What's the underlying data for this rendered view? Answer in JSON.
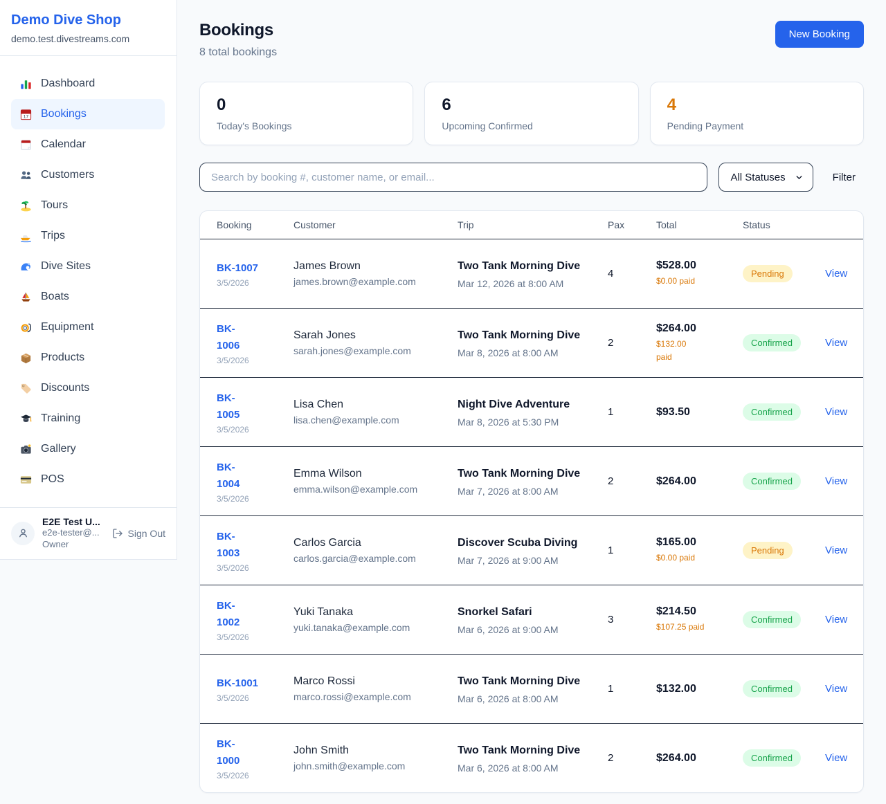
{
  "brand": {
    "name": "Demo Dive Shop",
    "domain": "demo.test.divestreams.com"
  },
  "nav": [
    {
      "icon": "dashboard",
      "label": "Dashboard",
      "active": false
    },
    {
      "icon": "bookings",
      "label": "Bookings",
      "active": true
    },
    {
      "icon": "calendar",
      "label": "Calendar",
      "active": false
    },
    {
      "icon": "customers",
      "label": "Customers",
      "active": false
    },
    {
      "icon": "tours",
      "label": "Tours",
      "active": false
    },
    {
      "icon": "trips",
      "label": "Trips",
      "active": false
    },
    {
      "icon": "dive-sites",
      "label": "Dive Sites",
      "active": false
    },
    {
      "icon": "boats",
      "label": "Boats",
      "active": false
    },
    {
      "icon": "equipment",
      "label": "Equipment",
      "active": false
    },
    {
      "icon": "products",
      "label": "Products",
      "active": false
    },
    {
      "icon": "discounts",
      "label": "Discounts",
      "active": false
    },
    {
      "icon": "training",
      "label": "Training",
      "active": false
    },
    {
      "icon": "gallery",
      "label": "Gallery",
      "active": false
    },
    {
      "icon": "pos",
      "label": "POS",
      "active": false
    }
  ],
  "user": {
    "name": "E2E Test U...",
    "email": "e2e-tester@...",
    "role": "Owner",
    "sign_out": "Sign Out"
  },
  "header": {
    "title": "Bookings",
    "subtitle": "8 total bookings",
    "new_booking": "New Booking"
  },
  "stats": [
    {
      "value": "0",
      "label": "Today's Bookings"
    },
    {
      "value": "6",
      "label": "Upcoming Confirmed"
    },
    {
      "value": "4",
      "label": "Pending Payment"
    }
  ],
  "filters": {
    "search_placeholder": "Search by booking #, customer name, or email...",
    "status_value": "All Statuses",
    "filter_label": "Filter"
  },
  "table": {
    "headers": [
      "Booking",
      "Customer",
      "Trip",
      "Pax",
      "Total",
      "Status"
    ],
    "view_label": "View",
    "rows": [
      {
        "id_display": "BK-1007",
        "date": "3/5/2026",
        "customer": "James Brown",
        "email": "james.brown@example.com",
        "trip": "Two Tank Morning Dive",
        "trip_datetime": "Mar 12, 2026 at 8:00 AM",
        "pax": "4",
        "total": "$528.00",
        "paid_display": "$0.00 paid",
        "status": "Pending"
      },
      {
        "id_display": "BK-\n1006",
        "date": "3/5/2026",
        "customer": "Sarah Jones",
        "email": "sarah.jones@example.com",
        "trip": "Two Tank Morning Dive",
        "trip_datetime": "Mar 8, 2026 at 8:00 AM",
        "pax": "2",
        "total": "$264.00",
        "paid_display": "$132.00\npaid",
        "status": "Confirmed"
      },
      {
        "id_display": "BK-\n1005",
        "date": "3/5/2026",
        "customer": "Lisa Chen",
        "email": "lisa.chen@example.com",
        "trip": "Night Dive Adventure",
        "trip_datetime": "Mar 8, 2026 at 5:30 PM",
        "pax": "1",
        "total": "$93.50",
        "paid_display": null,
        "status": "Confirmed"
      },
      {
        "id_display": "BK-\n1004",
        "date": "3/5/2026",
        "customer": "Emma Wilson",
        "email": "emma.wilson@example.com",
        "trip": "Two Tank Morning Dive",
        "trip_datetime": "Mar 7, 2026 at 8:00 AM",
        "pax": "2",
        "total": "$264.00",
        "paid_display": null,
        "status": "Confirmed"
      },
      {
        "id_display": "BK-\n1003",
        "date": "3/5/2026",
        "customer": "Carlos Garcia",
        "email": "carlos.garcia@example.com",
        "trip": "Discover Scuba Diving",
        "trip_datetime": "Mar 7, 2026 at 9:00 AM",
        "pax": "1",
        "total": "$165.00",
        "paid_display": "$0.00 paid",
        "status": "Pending"
      },
      {
        "id_display": "BK-\n1002",
        "date": "3/5/2026",
        "customer": "Yuki Tanaka",
        "email": "yuki.tanaka@example.com",
        "trip": "Snorkel Safari",
        "trip_datetime": "Mar 6, 2026 at 9:00 AM",
        "pax": "3",
        "total": "$214.50",
        "paid_display": "$107.25 paid",
        "status": "Confirmed"
      },
      {
        "id_display": "BK-1001",
        "date": "3/5/2026",
        "customer": "Marco Rossi",
        "email": "marco.rossi@example.com",
        "trip": "Two Tank Morning Dive",
        "trip_datetime": "Mar 6, 2026 at 8:00 AM",
        "pax": "1",
        "total": "$132.00",
        "paid_display": null,
        "status": "Confirmed"
      },
      {
        "id_display": "BK-\n1000",
        "date": "3/5/2026",
        "customer": "John Smith",
        "email": "john.smith@example.com",
        "trip": "Two Tank Morning Dive",
        "trip_datetime": "Mar 6, 2026 at 8:00 AM",
        "pax": "2",
        "total": "$264.00",
        "paid_display": null,
        "status": "Confirmed"
      }
    ]
  },
  "colors": {
    "accent": "#2563eb",
    "pending_text": "#d97706",
    "pending_bg": "#fef3c7",
    "confirmed_text": "#16a34a",
    "confirmed_bg": "#dcfce7"
  }
}
